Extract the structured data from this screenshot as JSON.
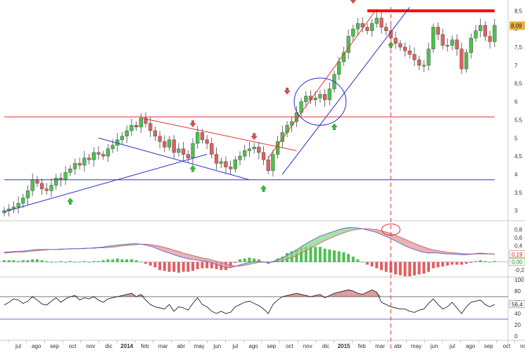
{
  "chart_data": [
    {
      "panel": "price",
      "type": "candlestick",
      "y_ticks": [
        "3",
        "3,5",
        "4",
        "4,5",
        "5",
        "5,5",
        "6",
        "6,5",
        "7",
        "7,5",
        "8",
        "8,5"
      ],
      "ylim": [
        2.8,
        8.7
      ],
      "last_price": 8.09,
      "last_price_label": "8,09",
      "weekly_close": [
        3.0,
        3.05,
        3.1,
        3.2,
        3.35,
        3.55,
        3.85,
        3.75,
        3.6,
        3.55,
        3.7,
        3.9,
        3.85,
        4.05,
        4.15,
        4.3,
        4.25,
        4.45,
        4.4,
        4.6,
        4.55,
        4.5,
        4.7,
        4.8,
        4.95,
        5.05,
        5.2,
        5.35,
        5.3,
        5.55,
        5.4,
        5.2,
        5.05,
        4.9,
        4.75,
        4.95,
        4.6,
        4.7,
        4.55,
        4.45,
        4.85,
        5.15,
        4.95,
        4.85,
        4.55,
        4.3,
        4.35,
        4.2,
        4.15,
        4.4,
        4.5,
        4.65,
        4.7,
        4.75,
        4.6,
        4.4,
        4.1,
        4.55,
        4.9,
        5.15,
        5.35,
        5.45,
        5.7,
        6.0,
        6.15,
        6.05,
        6.1,
        6.2,
        6.05,
        6.35,
        6.75,
        7.1,
        7.35,
        7.8,
        8.0,
        8.15,
        8.05,
        7.95,
        8.15,
        8.3,
        8.05,
        7.95,
        7.75,
        7.6,
        7.5,
        7.4,
        7.3,
        7.15,
        7.0,
        7.0,
        7.45,
        8.05,
        7.85,
        7.55,
        7.55,
        7.7,
        7.45,
        6.9,
        7.35,
        7.75,
        7.95,
        8.1,
        7.8,
        7.65,
        8.1
      ],
      "lines": [
        {
          "name": "support-horizontal",
          "color": "#2b2bc8",
          "points": [
            [
              0,
              3.85
            ],
            [
              104,
              3.85
            ]
          ]
        },
        {
          "name": "resistance-horizontal",
          "color": "#e53030",
          "points": [
            [
              0,
              5.58
            ],
            [
              104,
              5.58
            ]
          ]
        },
        {
          "name": "top-resistance",
          "color": "#ff0000",
          "points": [
            [
              77,
              8.5
            ],
            [
              104,
              8.5
            ]
          ]
        },
        {
          "name": "long-support-trend",
          "color": "#2b2bc8",
          "points": [
            [
              0,
              2.97
            ],
            [
              43,
              4.55
            ]
          ]
        },
        {
          "name": "flag-top",
          "color": "#e53030",
          "points": [
            [
              29,
              5.55
            ],
            [
              62,
              4.65
            ]
          ]
        },
        {
          "name": "flag-bottom",
          "color": "#2b2bc8",
          "points": [
            [
              20,
              5.0
            ],
            [
              52,
              3.85
            ]
          ]
        },
        {
          "name": "channel-upper",
          "color": "#e53030",
          "points": [
            [
              56,
              4.45
            ],
            [
              79,
              8.55
            ]
          ]
        },
        {
          "name": "channel-lower",
          "color": "#2b2bc8",
          "points": [
            [
              59,
              4.0
            ],
            [
              86,
              8.6
            ]
          ]
        }
      ],
      "arrows": [
        {
          "dir": "up",
          "x": 14,
          "y": 3.25
        },
        {
          "dir": "down",
          "x": 40,
          "y": 5.4
        },
        {
          "dir": "up",
          "x": 40,
          "y": 4.15
        },
        {
          "dir": "down",
          "x": 53,
          "y": 5.05
        },
        {
          "dir": "up",
          "x": 55,
          "y": 3.6
        },
        {
          "dir": "down",
          "x": 60,
          "y": 6.3
        },
        {
          "dir": "up",
          "x": 70,
          "y": 5.3
        },
        {
          "dir": "down",
          "x": 74,
          "y": 8.8
        },
        {
          "dir": "up",
          "x": 82,
          "y": 7.55
        }
      ],
      "ellipse": {
        "color": "#2b2bc8",
        "cx": 67,
        "cy": 6.0,
        "rx": 5.5,
        "ry": 0.65
      }
    },
    {
      "panel": "macd",
      "type": "line+histogram",
      "y_ticks": [
        "0,8",
        "0,6",
        "0,4",
        "0,2",
        "0",
        "-0,2"
      ],
      "ylim": [
        -0.3,
        0.95
      ],
      "labels": {
        "signal": "0,19",
        "zero": "0,00"
      },
      "macd": [
        0.24,
        0.25,
        0.26,
        0.26,
        0.27,
        0.28,
        0.3,
        0.31,
        0.31,
        0.31,
        0.31,
        0.31,
        0.32,
        0.32,
        0.33,
        0.33,
        0.33,
        0.34,
        0.34,
        0.35,
        0.36,
        0.37,
        0.39,
        0.4,
        0.42,
        0.43,
        0.44,
        0.45,
        0.45,
        0.44,
        0.42,
        0.39,
        0.35,
        0.3,
        0.26,
        0.22,
        0.18,
        0.14,
        0.11,
        0.08,
        0.06,
        0.05,
        0.03,
        0.01,
        -0.02,
        -0.06,
        -0.1,
        -0.14,
        -0.14,
        -0.11,
        -0.07,
        -0.04,
        -0.01,
        0.01,
        0.02,
        0.0,
        -0.02,
        0.01,
        0.06,
        0.1,
        0.17,
        0.23,
        0.3,
        0.38,
        0.45,
        0.52,
        0.58,
        0.64,
        0.68,
        0.72,
        0.76,
        0.8,
        0.83,
        0.85,
        0.85,
        0.84,
        0.82,
        0.79,
        0.76,
        0.73,
        0.68,
        0.63,
        0.58,
        0.52,
        0.46,
        0.4,
        0.35,
        0.31,
        0.27,
        0.24,
        0.22,
        0.23,
        0.22,
        0.21,
        0.2,
        0.2,
        0.19,
        0.18,
        0.18,
        0.19,
        0.21,
        0.22,
        0.21,
        0.2,
        0.2
      ],
      "signal": [
        0.22,
        0.23,
        0.24,
        0.25,
        0.25,
        0.26,
        0.27,
        0.28,
        0.29,
        0.3,
        0.31,
        0.31,
        0.31,
        0.32,
        0.32,
        0.33,
        0.33,
        0.33,
        0.34,
        0.34,
        0.35,
        0.35,
        0.36,
        0.37,
        0.38,
        0.4,
        0.41,
        0.42,
        0.43,
        0.44,
        0.44,
        0.43,
        0.41,
        0.39,
        0.36,
        0.33,
        0.29,
        0.26,
        0.22,
        0.19,
        0.16,
        0.13,
        0.1,
        0.08,
        0.05,
        0.02,
        -0.01,
        -0.05,
        -0.08,
        -0.1,
        -0.1,
        -0.08,
        -0.06,
        -0.03,
        -0.01,
        0.0,
        0.0,
        0.0,
        0.02,
        0.04,
        0.07,
        0.11,
        0.16,
        0.22,
        0.28,
        0.34,
        0.41,
        0.47,
        0.53,
        0.58,
        0.63,
        0.68,
        0.72,
        0.76,
        0.79,
        0.81,
        0.82,
        0.82,
        0.81,
        0.8,
        0.77,
        0.74,
        0.7,
        0.66,
        0.61,
        0.56,
        0.51,
        0.46,
        0.41,
        0.37,
        0.33,
        0.3,
        0.28,
        0.26,
        0.24,
        0.23,
        0.22,
        0.21,
        0.2,
        0.2,
        0.2,
        0.2,
        0.2,
        0.2,
        0.19
      ]
    },
    {
      "panel": "rsi",
      "type": "line",
      "y_ticks": [
        "100",
        "80",
        "60",
        "40",
        "20",
        "0"
      ],
      "ylim": [
        0,
        100
      ],
      "upper_band": 70,
      "lower_band": 30,
      "last_value_label": "56,4",
      "rsi": [
        55,
        60,
        66,
        64,
        58,
        62,
        70,
        64,
        57,
        55,
        62,
        68,
        60,
        66,
        70,
        72,
        64,
        68,
        66,
        70,
        64,
        60,
        66,
        68,
        70,
        72,
        74,
        76,
        70,
        74,
        64,
        56,
        52,
        50,
        48,
        56,
        44,
        52,
        50,
        46,
        58,
        68,
        56,
        52,
        44,
        40,
        44,
        40,
        42,
        52,
        56,
        60,
        62,
        58,
        54,
        48,
        40,
        56,
        64,
        70,
        72,
        74,
        76,
        74,
        72,
        70,
        72,
        74,
        68,
        72,
        76,
        78,
        80,
        82,
        80,
        76,
        74,
        78,
        82,
        78,
        60,
        56,
        52,
        50,
        48,
        48,
        44,
        42,
        46,
        48,
        58,
        66,
        56,
        48,
        52,
        60,
        50,
        40,
        52,
        60,
        62,
        64,
        56,
        52,
        56
      ]
    }
  ],
  "x_axis": {
    "months": [
      "jul",
      "ago",
      "sep",
      "oct",
      "nov",
      "dic",
      "2014",
      "feb",
      "mar",
      "abr",
      "may",
      "jun",
      "jul",
      "ago",
      "sep",
      "oct",
      "nov",
      "dic",
      "2015",
      "feb",
      "mar",
      "abr",
      "may",
      "jun",
      "jul",
      "ago",
      "sep",
      "oct",
      "nov"
    ],
    "year_labels": [
      "2014",
      "2015"
    ]
  },
  "colors": {
    "up": "#4ec04e",
    "down": "#e06060",
    "support": "#2b2bc8",
    "resistance": "#e53030",
    "accent": "#e8b040",
    "macd_line": "#6a6ad8",
    "signal_line": "#c86a6a",
    "rsi_line": "#222222",
    "rsi_band": "#444444",
    "grid_divider": "#c8c8c8"
  }
}
